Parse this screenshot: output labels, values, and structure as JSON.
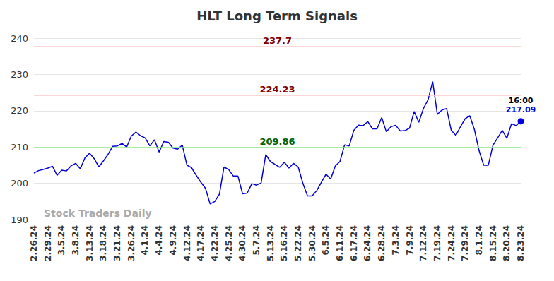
{
  "chart_data": {
    "type": "line",
    "title": "HLT Long Term Signals",
    "watermark": "Stock Traders Daily",
    "categories": [
      "2.26.24",
      null,
      null,
      "2.29.24",
      null,
      null,
      "3.5.24",
      null,
      null,
      "3.8.24",
      null,
      null,
      "3.13.24",
      null,
      null,
      "3.18.24",
      null,
      null,
      "3.21.24",
      null,
      null,
      "3.26.24",
      null,
      null,
      "4.1.24",
      null,
      null,
      "4.4.24",
      null,
      null,
      "4.9.24",
      null,
      null,
      "4.12.24",
      null,
      null,
      "4.17.24",
      null,
      null,
      "4.22.24",
      null,
      null,
      "4.25.24",
      null,
      null,
      "4.30.24",
      null,
      null,
      "5.7.24",
      null,
      null,
      "5.13.24",
      null,
      null,
      "5.16.24",
      null,
      null,
      "5.22.24",
      null,
      null,
      "5.30.24",
      null,
      null,
      "6.5.24",
      null,
      null,
      "6.11.24",
      null,
      null,
      "6.17.24",
      null,
      null,
      "6.24.24",
      null,
      null,
      "6.28.24",
      null,
      null,
      "7.3.24",
      null,
      null,
      "7.9.24",
      null,
      null,
      "7.12.24",
      null,
      null,
      "7.19.24",
      null,
      null,
      "7.24.24",
      null,
      null,
      "7.29.24",
      null,
      null,
      "8.1.24",
      null,
      null,
      "8.15.24",
      null,
      null,
      "8.20.24",
      null,
      null,
      "8.23.24"
    ],
    "values": [
      202.8,
      203.5,
      203.8,
      204.2,
      204.7,
      202.2,
      203.6,
      203.4,
      204.8,
      205.5,
      204,
      207,
      208.3,
      206.8,
      204.5,
      206.2,
      208,
      210.2,
      210.3,
      211,
      210,
      213,
      214.1,
      213.1,
      212.5,
      210.3,
      212,
      208.6,
      211.5,
      211.3,
      209.7,
      209.4,
      210.5,
      205,
      204.3,
      202.2,
      200.3,
      198.6,
      194.3,
      195,
      197,
      204.5,
      203.8,
      202,
      202,
      197.1,
      197.3,
      199.9,
      199.5,
      200.1,
      207.9,
      206,
      205.2,
      204.4,
      205.8,
      204.2,
      205.5,
      204.5,
      200,
      196.5,
      196.5,
      198,
      200.3,
      202.5,
      201.2,
      204.8,
      206,
      210.6,
      210.3,
      214.6,
      216,
      215.9,
      217,
      215,
      215,
      218.1,
      214.2,
      215.6,
      216,
      214.4,
      214.5,
      215.2,
      219.8,
      216.8,
      220.6,
      223,
      228,
      219,
      220.2,
      220.6,
      214.6,
      213.2,
      215.6,
      217.8,
      218.6,
      214.8,
      209,
      205,
      205,
      210.5,
      212.5,
      214.6,
      212.4,
      216.4,
      215.9,
      217.09
    ],
    "color": "#0000dd",
    "last_point_time": "16:00",
    "levels": [
      {
        "value": 237.7,
        "color": "#ffc8c8",
        "label_color": "#800000"
      },
      {
        "value": 224.23,
        "color": "#ffc8c8",
        "label_color": "#800000"
      },
      {
        "value": 209.86,
        "color": "#90ee90",
        "label_color": "#006400"
      }
    ],
    "ylim": [
      190,
      240
    ],
    "yticks": [
      190,
      200,
      210,
      220,
      230,
      240
    ],
    "grid": true
  }
}
